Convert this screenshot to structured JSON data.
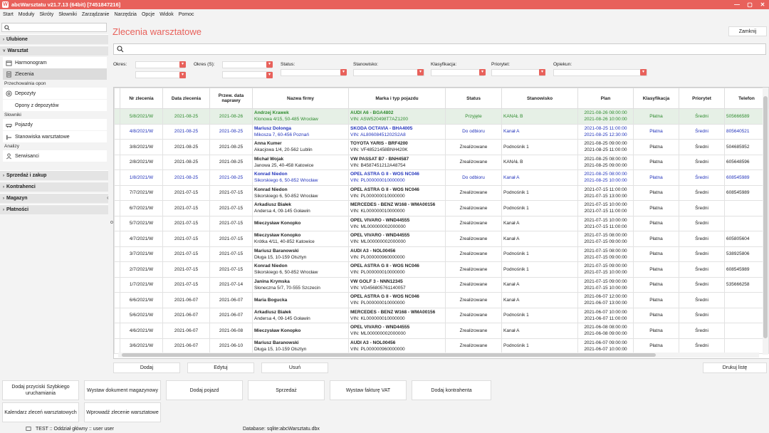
{
  "window": {
    "title": "abcWarsztatu v21.7.13 (64bit) [7451847216]",
    "min": "—",
    "max": "▢",
    "close": "✕"
  },
  "menu": [
    "Start",
    "Moduły",
    "Skróty",
    "Słowniki",
    "Zarządzanie",
    "Narzędzia",
    "Opcje",
    "Widok",
    "Pomoc"
  ],
  "sidebar": {
    "search_icon": "search-icon",
    "sections": {
      "ulubione": "Ulubione",
      "warsztat": "Warsztat",
      "sprzedaz": "Sprzedaż i zakup",
      "kontrahenci": "Kontrahenci",
      "magazyn": "Magazyn",
      "platnosci": "Płatności"
    },
    "groups": {
      "przechowalnia": "Przechowalnia opon",
      "slowniki": "Słowniki",
      "analizy": "Analizy"
    },
    "items": {
      "harmonogram": "Harmonogram",
      "zlecenia": "Zlecenia",
      "depozyty": "Depozyty",
      "opony": "Opony z depozytów",
      "pojazdy": "Pojazdy",
      "stanowiska": "Stanowiska warsztatowe",
      "serwisanci": "Serwisanci"
    },
    "handle": "‹",
    "marker": "o"
  },
  "main": {
    "title": "Zlecenia warsztatowe",
    "close_label": "Zamknij",
    "filters": {
      "okres": "Okres:",
      "okres_s": "Okres (S):",
      "status": "Status:",
      "stanowisko": "Stanowisko:",
      "klasyfikacja": "Klasyfikacja:",
      "priorytet": "Priorytet:",
      "opiekun": "Opiekun:"
    },
    "columns": [
      "Nr zlecenia",
      "Data zlecenia",
      "Przew. data naprawy",
      "Nazwa firmy",
      "Marka i typ pojazdu",
      "Status",
      "Stanowisko",
      "Plan",
      "Klasyfikacja",
      "Priorytet",
      "Telefon"
    ],
    "rows": [
      {
        "nr": "5/8/2021/W",
        "data": "2021-08-25",
        "przew": "2021-08-26",
        "firma": "Andrzej Krawek",
        "adres": "Klonowa 4/15, 50-485 Wrocław",
        "marka": "AUDI A6 - BGA4802",
        "vin": "VIN: ASW520498T7AZ1200",
        "status": "Przyjęte",
        "stan": "KANAŁ B",
        "plan1": "2021-08-26 08:00:00",
        "plan2": "2021-08-26 10:00:00",
        "klas": "Płatna",
        "prio": "Średni",
        "tel": "505666589",
        "color": "green",
        "sel": true
      },
      {
        "nr": "4/8/2021/W",
        "data": "2021-08-25",
        "przew": "2021-08-25",
        "firma": "Mariusz Dolonga",
        "adres": "Mikosza 7, 60-456 Poznań",
        "marka": "SKODA OCTAVIA - BHA4005",
        "vin": "VIN: AL80608451202S2A8",
        "status": "Do odbioru",
        "stan": "Kanał A",
        "plan1": "2021-08-25 11:00:00",
        "plan2": "2021-08-25 12:30:00",
        "klas": "Płatna",
        "prio": "Średni",
        "tel": "805640521",
        "color": "blue",
        "sel": false
      },
      {
        "nr": "3/8/2021/W",
        "data": "2021-08-25",
        "przew": "2021-08-25",
        "firma": "Anna Kumer",
        "adres": "Akacjowa 1/4, 20-562 Lublin",
        "marka": "TOYOTA YARIS - BRF4200",
        "vin": "VIN: VF48521458BNH420K",
        "status": "Zrealizowane",
        "stan": "Podnośnik 1",
        "plan1": "2021-08-25 09:00:00",
        "plan2": "2021-08-25 11:00:00",
        "klas": "Płatna",
        "prio": "Średni",
        "tel": "504685952",
        "color": "",
        "sel": false
      },
      {
        "nr": "2/8/2021/W",
        "data": "2021-08-25",
        "przew": "2021-08-25",
        "firma": "Michał Wojak",
        "adres": "Janowa 25, 40-458 Katowice",
        "marka": "VW PASSAT B7 - BNH4587",
        "vin": "VIN: B4587451212A48754",
        "status": "Zrealizowane",
        "stan": "KANAŁ B",
        "plan1": "2021-08-25 08:00:00",
        "plan2": "2021-08-25 09:00:00",
        "klas": "Płatna",
        "prio": "Średni",
        "tel": "605648596",
        "color": "",
        "sel": false
      },
      {
        "nr": "1/8/2021/W",
        "data": "2021-08-25",
        "przew": "2021-08-25",
        "firma": "Konrad Niedon",
        "adres": "Sikorskiego 6, 50-852 Wrocław",
        "marka": "OPEL ASTRA G II - WOS NC046",
        "vin": "VIN: PL000000010000000",
        "status": "Do odbioru",
        "stan": "Kanał A",
        "plan1": "2021-08-25 08:00:00",
        "plan2": "2021-08-25 10:00:00",
        "klas": "Płatna",
        "prio": "Średni",
        "tel": "608545989",
        "color": "blue",
        "sel": false
      },
      {
        "nr": "7/7/2021/W",
        "data": "2021-07-15",
        "przew": "2021-07-15",
        "firma": "Konrad Niedon",
        "adres": "Sikorskiego 6, 50-852 Wrocław",
        "marka": "OPEL ASTRA G II - WOS NC046",
        "vin": "VIN: PL000000010000000",
        "status": "Zrealizowane",
        "stan": "Podnośnik 1",
        "plan1": "2021-07-15 11:00:00",
        "plan2": "2021-07-15 13:00:00",
        "klas": "Płatna",
        "prio": "Średni",
        "tel": "608545989",
        "color": "",
        "sel": false
      },
      {
        "nr": "6/7/2021/W",
        "data": "2021-07-15",
        "przew": "2021-07-15",
        "firma": "Arkadiusz Białek",
        "adres": "Andersa 4, 09-145 Goławin",
        "marka": "MERCEDES - BENZ W168 - WMA00156",
        "vin": "VIN: KL000000010000000",
        "status": "Zrealizowane",
        "stan": "Podnośnik 1",
        "plan1": "2021-07-15 10:00:00",
        "plan2": "2021-07-15 11:00:00",
        "klas": "Płatna",
        "prio": "Średni",
        "tel": "",
        "color": "",
        "sel": false
      },
      {
        "nr": "5/7/2021/W",
        "data": "2021-07-15",
        "przew": "2021-07-15",
        "firma": "Mieczysław Konopko",
        "adres": "",
        "marka": "OPEL VIVARO - WND44555",
        "vin": "VIN: ML000000002000000",
        "status": "Zrealizowane",
        "stan": "Kanał A",
        "plan1": "2021-07-15 10:00:00",
        "plan2": "2021-07-15 11:00:00",
        "klas": "Płatna",
        "prio": "Średni",
        "tel": "",
        "color": "",
        "sel": false
      },
      {
        "nr": "4/7/2021/W",
        "data": "2021-07-15",
        "przew": "2021-07-15",
        "firma": "Mieczysław Konopko",
        "adres": "Krótka 4/11, 40-852 Katowice",
        "marka": "OPEL VIVARO - WND44555",
        "vin": "VIN: ML000000002000000",
        "status": "Zrealizowane",
        "stan": "Kanał A",
        "plan1": "2021-07-15 08:00:00",
        "plan2": "2021-07-15 09:00:00",
        "klas": "Płatna",
        "prio": "Średni",
        "tel": "605805604",
        "color": "",
        "sel": false
      },
      {
        "nr": "3/7/2021/W",
        "data": "2021-07-15",
        "przew": "2021-07-15",
        "firma": "Mariusz Baranowski",
        "adres": "Długa 15, 10-159 Olsztyn",
        "marka": "AUDI A3 - NOL00456",
        "vin": "VIN: PL000000960000000",
        "status": "Zrealizowane",
        "stan": "Podnośnik 1",
        "plan1": "2021-07-15 08:00:00",
        "plan2": "2021-07-15 09:00:00",
        "klas": "Płatna",
        "prio": "Średni",
        "tel": "538925806",
        "color": "",
        "sel": false
      },
      {
        "nr": "2/7/2021/W",
        "data": "2021-07-15",
        "przew": "2021-07-15",
        "firma": "Konrad Niedon",
        "adres": "Sikorskiego 6, 50-852 Wrocław",
        "marka": "OPEL ASTRA G II - WOS NC046",
        "vin": "VIN: PL000000010000000",
        "status": "Zrealizowane",
        "stan": "Podnośnik 1",
        "plan1": "2021-07-15 09:00:00",
        "plan2": "2021-07-15 10:00:00",
        "klas": "Płatna",
        "prio": "Średni",
        "tel": "608545989",
        "color": "",
        "sel": false
      },
      {
        "nr": "1/7/2021/W",
        "data": "2021-07-15",
        "przew": "2021-07-14",
        "firma": "Janina Krymska",
        "adres": "Słoneczna 5/7, 70-555 Szczecin",
        "marka": "VW GOLF 3 - NNN12345",
        "vin": "VIN: VG456805761140057",
        "status": "Zrealizowane",
        "stan": "Kanał A",
        "plan1": "2021-07-15 09:00:00",
        "plan2": "2021-07-15 10:00:00",
        "klas": "Płatna",
        "prio": "Średni",
        "tel": "535666258",
        "color": "",
        "sel": false
      },
      {
        "nr": "6/6/2021/W",
        "data": "2021-06-07",
        "przew": "2021-06-07",
        "firma": "Maria Bogucka",
        "adres": "",
        "marka": "OPEL ASTRA G II - WOS NC046",
        "vin": "VIN: PL000000010000000",
        "status": "Zrealizowane",
        "stan": "Kanał A",
        "plan1": "2021-06-07 12:00:00",
        "plan2": "2021-06-07 13:00:00",
        "klas": "Płatna",
        "prio": "Średni",
        "tel": "",
        "color": "",
        "sel": false
      },
      {
        "nr": "5/6/2021/W",
        "data": "2021-06-07",
        "przew": "2021-06-07",
        "firma": "Arkadiusz Białek",
        "adres": "Andersa 4, 09-145 Goławin",
        "marka": "MERCEDES - BENZ W168 - WMA00156",
        "vin": "VIN: KL000000010000000",
        "status": "Zrealizowane",
        "stan": "Podnośnik 1",
        "plan1": "2021-06-07 10:00:00",
        "plan2": "2021-06-07 11:00:00",
        "klas": "Płatna",
        "prio": "Średni",
        "tel": "",
        "color": "",
        "sel": false
      },
      {
        "nr": "4/6/2021/W",
        "data": "2021-06-07",
        "przew": "2021-06-08",
        "firma": "Mieczysław Konopko",
        "adres": "",
        "marka": "OPEL VIVARO - WND44555",
        "vin": "VIN: ML000000002000000",
        "status": "Zrealizowane",
        "stan": "Kanał A",
        "plan1": "2021-06-08 08:00:00",
        "plan2": "2021-06-08 09:00:00",
        "klas": "Płatna",
        "prio": "Średni",
        "tel": "",
        "color": "",
        "sel": false
      },
      {
        "nr": "3/6/2021/W",
        "data": "2021-06-07",
        "przew": "2021-06-10",
        "firma": "Mariusz Baranowski",
        "adres": "Długa 15, 10-159 Olsztyn",
        "marka": "AUDI A3 - NOL00456",
        "vin": "VIN: PL000000960000000",
        "status": "Zrealizowane",
        "stan": "Podnośnik 1",
        "plan1": "2021-06-07 09:00:00",
        "plan2": "2021-06-07 10:00:00",
        "klas": "Płatna",
        "prio": "Średni",
        "tel": "",
        "color": "",
        "sel": false
      }
    ],
    "actions": {
      "dodaj": "Dodaj",
      "edytuj": "Edytuj",
      "usun": "Usuń",
      "drukuj": "Drukuj listę"
    }
  },
  "shortcuts": [
    "Dodaj przyciski Szybkiego uruchamiania",
    "Wystaw dokument magazynowy",
    "Dodaj pojazd",
    "Sprzedaż",
    "Wystaw fakturę VAT",
    "Dodaj kontrahenta",
    "Kalendarz zleceń warsztatowych",
    "Wprowadź zlecenie warsztatowe"
  ],
  "status": {
    "user": "TEST :: Oddział główny :: user user",
    "db": "Database: sqlite:abcWarsztatu.dbx"
  },
  "colors": {
    "accent": "#e8615b",
    "blue": "#2233bb",
    "green": "#2e8b2e"
  }
}
